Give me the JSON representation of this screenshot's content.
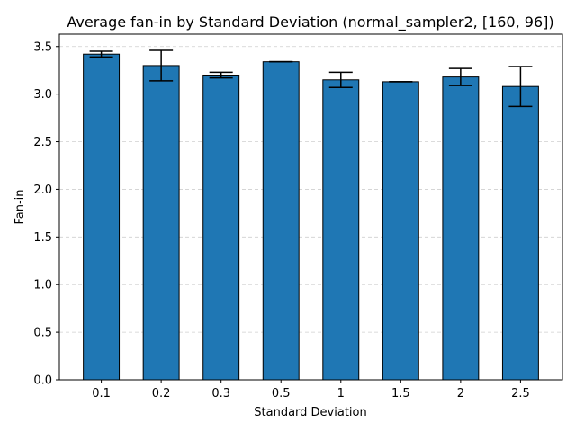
{
  "chart_data": {
    "type": "bar",
    "title": "Average fan-in by Standard Deviation (normal_sampler2, [160, 96])",
    "xlabel": "Standard Deviation",
    "ylabel": "Fan-in",
    "categories": [
      "0.1",
      "0.2",
      "0.3",
      "0.5",
      "1",
      "1.5",
      "2",
      "2.5"
    ],
    "values": [
      3.42,
      3.3,
      3.2,
      3.34,
      3.15,
      3.13,
      3.18,
      3.08
    ],
    "error": [
      0.03,
      0.16,
      0.03,
      0.0,
      0.08,
      0.0,
      0.09,
      0.21
    ],
    "ylim": [
      0,
      3.63
    ],
    "yticks": [
      "0.0",
      "0.5",
      "1.0",
      "1.5",
      "2.0",
      "2.5",
      "3.0",
      "3.5"
    ],
    "grid": "y dashed",
    "bar_color": "#1f77b4",
    "edge_color": "#000000"
  }
}
